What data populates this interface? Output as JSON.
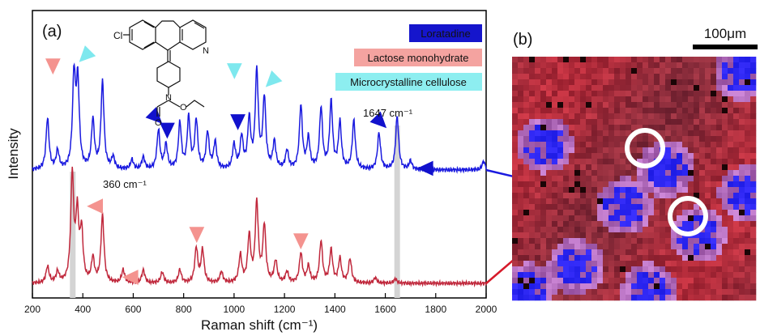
{
  "panel_a": {
    "label": "(a)",
    "xlabel": "Raman shift (cm⁻¹)",
    "ylabel": "Intensity",
    "xticks": [
      "200",
      "400",
      "600",
      "800",
      "1000",
      "1200",
      "1400",
      "1600",
      "1800",
      "2000"
    ],
    "legend": [
      {
        "label": "Loratadine",
        "bg": "#1515cc",
        "fg": "#ffffff"
      },
      {
        "label": "Lactose monohydrate",
        "bg": "#f4a3a0",
        "fg": "#222222"
      },
      {
        "label": "Microcrystalline cellulose",
        "bg": "#8deef0",
        "fg": "#222222"
      }
    ],
    "annotation_360": "360 cm⁻¹",
    "annotation_1647": "1647 cm⁻¹",
    "molecule_labels": {
      "cl": "Cl",
      "n1": "N",
      "n2": "N",
      "o1": "O",
      "o2": "O"
    }
  },
  "panel_b": {
    "label": "(b)",
    "scale_bar": "100μm"
  },
  "colors": {
    "blue_spectrum": "#1a1adf",
    "red_spectrum": "#c0283c",
    "lactose_marker": "#f4938f",
    "cellulose_marker": "#7ee8ee",
    "loratadine_marker": "#1111cc",
    "highlight_band": "#d4d4d4"
  },
  "chart_data": {
    "type": "line",
    "xlabel": "Raman shift (cm⁻¹)",
    "ylabel": "Intensity",
    "xlim": [
      200,
      2000
    ],
    "series": [
      {
        "spectrum": "blue",
        "peaks": [
          [
            260,
            0.42
          ],
          [
            300,
            0.15
          ],
          [
            365,
            0.75
          ],
          [
            380,
            0.7
          ],
          [
            440,
            0.4
          ],
          [
            478,
            0.72
          ],
          [
            520,
            0.1
          ],
          [
            595,
            0.08
          ],
          [
            640,
            0.1
          ],
          [
            700,
            0.32
          ],
          [
            730,
            0.2
          ],
          [
            785,
            0.38
          ],
          [
            820,
            0.42
          ],
          [
            850,
            0.4
          ],
          [
            895,
            0.3
          ],
          [
            925,
            0.22
          ],
          [
            1000,
            0.2
          ],
          [
            1030,
            0.26
          ],
          [
            1060,
            0.4
          ],
          [
            1090,
            0.8
          ],
          [
            1120,
            0.58
          ],
          [
            1160,
            0.22
          ],
          [
            1210,
            0.15
          ],
          [
            1265,
            0.52
          ],
          [
            1295,
            0.25
          ],
          [
            1345,
            0.5
          ],
          [
            1385,
            0.55
          ],
          [
            1420,
            0.38
          ],
          [
            1475,
            0.4
          ],
          [
            1575,
            0.3
          ],
          [
            1647,
            0.44
          ],
          [
            1700,
            0.07
          ],
          [
            1990,
            0.07
          ]
        ],
        "baseline": 0.3
      },
      {
        "spectrum": "red",
        "peaks": [
          [
            260,
            0.15
          ],
          [
            300,
            0.1
          ],
          [
            358,
            0.98
          ],
          [
            378,
            0.6
          ],
          [
            395,
            0.45
          ],
          [
            440,
            0.22
          ],
          [
            478,
            0.62
          ],
          [
            560,
            0.12
          ],
          [
            640,
            0.12
          ],
          [
            715,
            0.1
          ],
          [
            785,
            0.12
          ],
          [
            850,
            0.32
          ],
          [
            875,
            0.3
          ],
          [
            950,
            0.1
          ],
          [
            1025,
            0.25
          ],
          [
            1060,
            0.42
          ],
          [
            1090,
            0.73
          ],
          [
            1120,
            0.52
          ],
          [
            1165,
            0.2
          ],
          [
            1210,
            0.1
          ],
          [
            1265,
            0.27
          ],
          [
            1295,
            0.15
          ],
          [
            1345,
            0.38
          ],
          [
            1385,
            0.3
          ],
          [
            1420,
            0.22
          ],
          [
            1460,
            0.22
          ],
          [
            1560,
            0.05
          ],
          [
            1640,
            0.04
          ]
        ],
        "baseline": 0.02
      }
    ],
    "highlight_bands": [
      360,
      1647
    ],
    "markers": [
      {
        "x": 365,
        "series": "blue",
        "color": "lactose",
        "direction": "right"
      },
      {
        "x": 410,
        "series": "blue",
        "color": "cellulose",
        "direction": "down-left"
      },
      {
        "x": 690,
        "series": "blue",
        "color": "loratadine",
        "direction": "down-right"
      },
      {
        "x": 735,
        "series": "blue",
        "color": "loratadine",
        "direction": "down"
      },
      {
        "x": 1015,
        "series": "blue",
        "color": "loratadine",
        "direction": "down"
      },
      {
        "x": 1085,
        "series": "blue",
        "color": "cellulose",
        "direction": "right"
      },
      {
        "x": 1150,
        "series": "blue",
        "color": "cellulose",
        "direction": "down-left"
      },
      {
        "x": 1580,
        "series": "blue",
        "color": "loratadine",
        "direction": "down-right"
      },
      {
        "x": 1710,
        "series": "blue",
        "color": "loratadine",
        "direction": "left"
      },
      {
        "x": 400,
        "series": "red",
        "color": "lactose",
        "direction": "left"
      },
      {
        "x": 540,
        "series": "red",
        "color": "lactose",
        "direction": "left"
      },
      {
        "x": 852,
        "series": "red",
        "color": "lactose",
        "direction": "down"
      },
      {
        "x": 1265,
        "series": "red",
        "color": "lactose",
        "direction": "down"
      }
    ]
  }
}
